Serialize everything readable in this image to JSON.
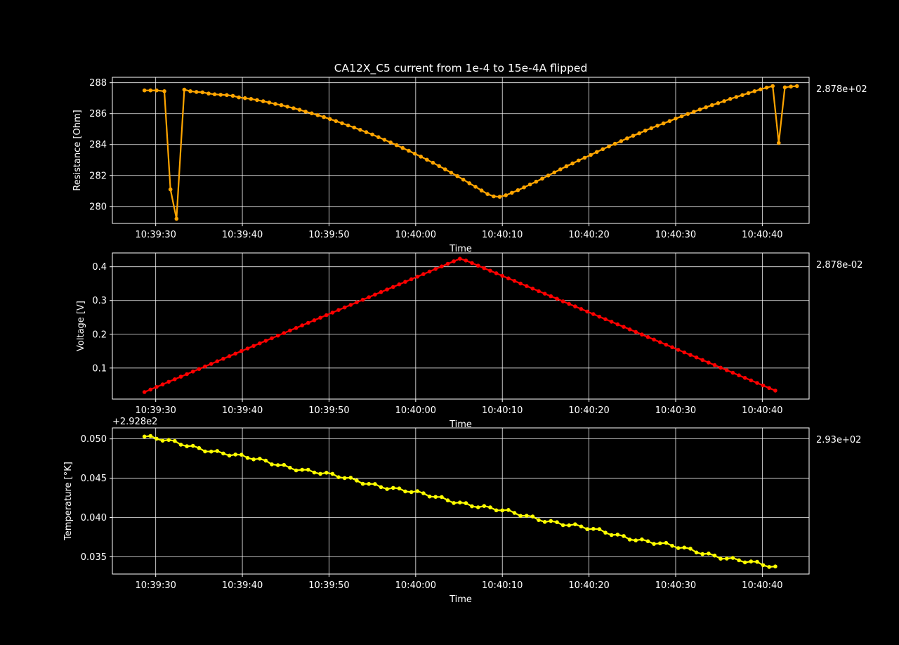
{
  "figure": {
    "title": "CA12X_C5 current from 1e-4 to 15e-4A flipped",
    "background": "#000000",
    "text_color": "#ffffff"
  },
  "chart_data": [
    {
      "type": "line",
      "xlabel": "Time",
      "ylabel": "Resistance [Ohm]",
      "color": "#ffa500",
      "side_label": "2.878e+02",
      "offset_label": "",
      "x_ticks": [
        "10:39:30",
        "10:39:40",
        "10:39:50",
        "10:40:00",
        "10:40:10",
        "10:40:20",
        "10:40:30",
        "10:40:40"
      ],
      "y_ticks": [
        "280",
        "282",
        "284",
        "286",
        "288"
      ],
      "y_tick_values": [
        280,
        282,
        284,
        286,
        288
      ],
      "xlim": [
        -3.7,
        76.7
      ],
      "ylim": [
        278.9,
        288.35
      ],
      "grid": true,
      "series": [
        {
          "x": [
            0,
            0.7,
            1.4,
            2.3,
            3.0,
            3.7,
            4.6,
            5.3,
            6.0,
            6.7,
            7.4,
            8.1,
            8.8,
            9.5,
            10.2,
            10.9,
            11.6,
            12.3,
            13.0,
            13.7,
            14.4,
            15.1,
            15.8,
            16.5,
            17.2,
            17.9,
            18.6,
            19.3,
            20.0,
            20.7,
            21.4,
            22.1,
            22.8,
            23.5,
            24.2,
            24.9,
            25.6,
            26.3,
            27.0,
            27.7,
            28.4,
            29.1,
            29.8,
            30.5,
            31.2,
            31.9,
            32.6,
            33.3,
            34.0,
            34.7,
            35.4,
            36.1,
            36.8,
            37.5,
            38.2,
            38.9,
            39.6,
            40.3,
            41.0,
            41.7,
            42.4,
            43.1,
            43.8,
            44.5,
            45.2,
            45.9,
            46.6,
            47.3,
            48.0,
            48.7,
            49.4,
            50.1,
            50.8,
            51.5,
            52.2,
            52.9,
            53.6,
            54.3,
            55.0,
            55.7,
            56.4,
            57.1,
            57.8,
            58.5,
            59.2,
            59.9,
            60.6,
            61.3,
            62.0,
            62.7,
            63.4,
            64.1,
            64.8,
            65.5,
            66.2,
            66.9,
            67.6,
            68.3,
            69.0,
            69.7,
            70.4,
            71.1,
            71.8,
            72.5,
            73.2
          ],
          "y": [
            287.5,
            287.5,
            287.5,
            287.45,
            281.1,
            279.2,
            287.55,
            287.45,
            287.4,
            287.38,
            287.3,
            287.25,
            287.22,
            287.2,
            287.15,
            287.05,
            287.0,
            286.95,
            286.88,
            286.8,
            286.72,
            286.63,
            286.55,
            286.45,
            286.35,
            286.25,
            286.13,
            286.02,
            285.9,
            285.78,
            285.65,
            285.52,
            285.38,
            285.24,
            285.1,
            284.95,
            284.8,
            284.65,
            284.48,
            284.31,
            284.14,
            283.96,
            283.78,
            283.6,
            283.41,
            283.22,
            283.02,
            282.82,
            282.61,
            282.4,
            282.18,
            281.96,
            281.73,
            281.5,
            281.27,
            281.03,
            280.8,
            280.65,
            280.62,
            280.72,
            280.88,
            281.05,
            281.23,
            281.42,
            281.6,
            281.8,
            282.0,
            282.2,
            282.4,
            282.6,
            282.78,
            282.97,
            283.15,
            283.33,
            283.52,
            283.7,
            283.88,
            284.05,
            284.22,
            284.4,
            284.57,
            284.73,
            284.9,
            285.06,
            285.22,
            285.37,
            285.52,
            285.68,
            285.83,
            285.98,
            286.12,
            286.27,
            286.41,
            286.55,
            286.68,
            286.81,
            286.95,
            287.08,
            287.2,
            287.33,
            287.45,
            287.57,
            287.68,
            287.78,
            284.1
          ],
          "extra": {
            "x": [
              73.9,
              74.6,
              75.3
            ],
            "y": [
              287.7,
              287.75,
              287.78
            ]
          }
        }
      ]
    },
    {
      "type": "line",
      "xlabel": "Time",
      "ylabel": "Voltage [V]",
      "color": "#ff0000",
      "side_label": "2.878e-02",
      "offset_label": "",
      "x_ticks": [
        "10:39:30",
        "10:39:40",
        "10:39:50",
        "10:40:00",
        "10:40:10",
        "10:40:20",
        "10:40:30",
        "10:40:40"
      ],
      "y_ticks": [
        "0.1",
        "0.2",
        "0.3",
        "0.4"
      ],
      "y_tick_values": [
        0.1,
        0.2,
        0.3,
        0.4
      ],
      "xlim": [
        -3.7,
        76.7
      ],
      "ylim": [
        0.008,
        0.441
      ],
      "grid": true,
      "peak": {
        "x": 36.5,
        "y": 0.425
      },
      "ends": [
        {
          "x": 0,
          "y": 0.0288
        },
        {
          "x": 73.2,
          "y": 0.0288
        }
      ],
      "step": 0.7
    },
    {
      "type": "line",
      "xlabel": "Time",
      "ylabel": "Temperature [°K]",
      "color": "#ffff00",
      "side_label": "2.93e+02",
      "offset_label": "+2.928e2",
      "x_ticks": [
        "10:39:30",
        "10:39:40",
        "10:39:50",
        "10:40:00",
        "10:40:10",
        "10:40:20",
        "10:40:30",
        "10:40:40"
      ],
      "y_ticks": [
        "0.035",
        "0.040",
        "0.045",
        "0.050"
      ],
      "y_tick_values": [
        0.035,
        0.04,
        0.045,
        0.05
      ],
      "xlim": [
        -3.7,
        76.7
      ],
      "ylim": [
        0.0328,
        0.0514
      ],
      "grid": true,
      "start": {
        "x": 0,
        "y": 0.0503
      },
      "end": {
        "x": 73.2,
        "y": 0.0335
      },
      "step": 0.7
    }
  ]
}
